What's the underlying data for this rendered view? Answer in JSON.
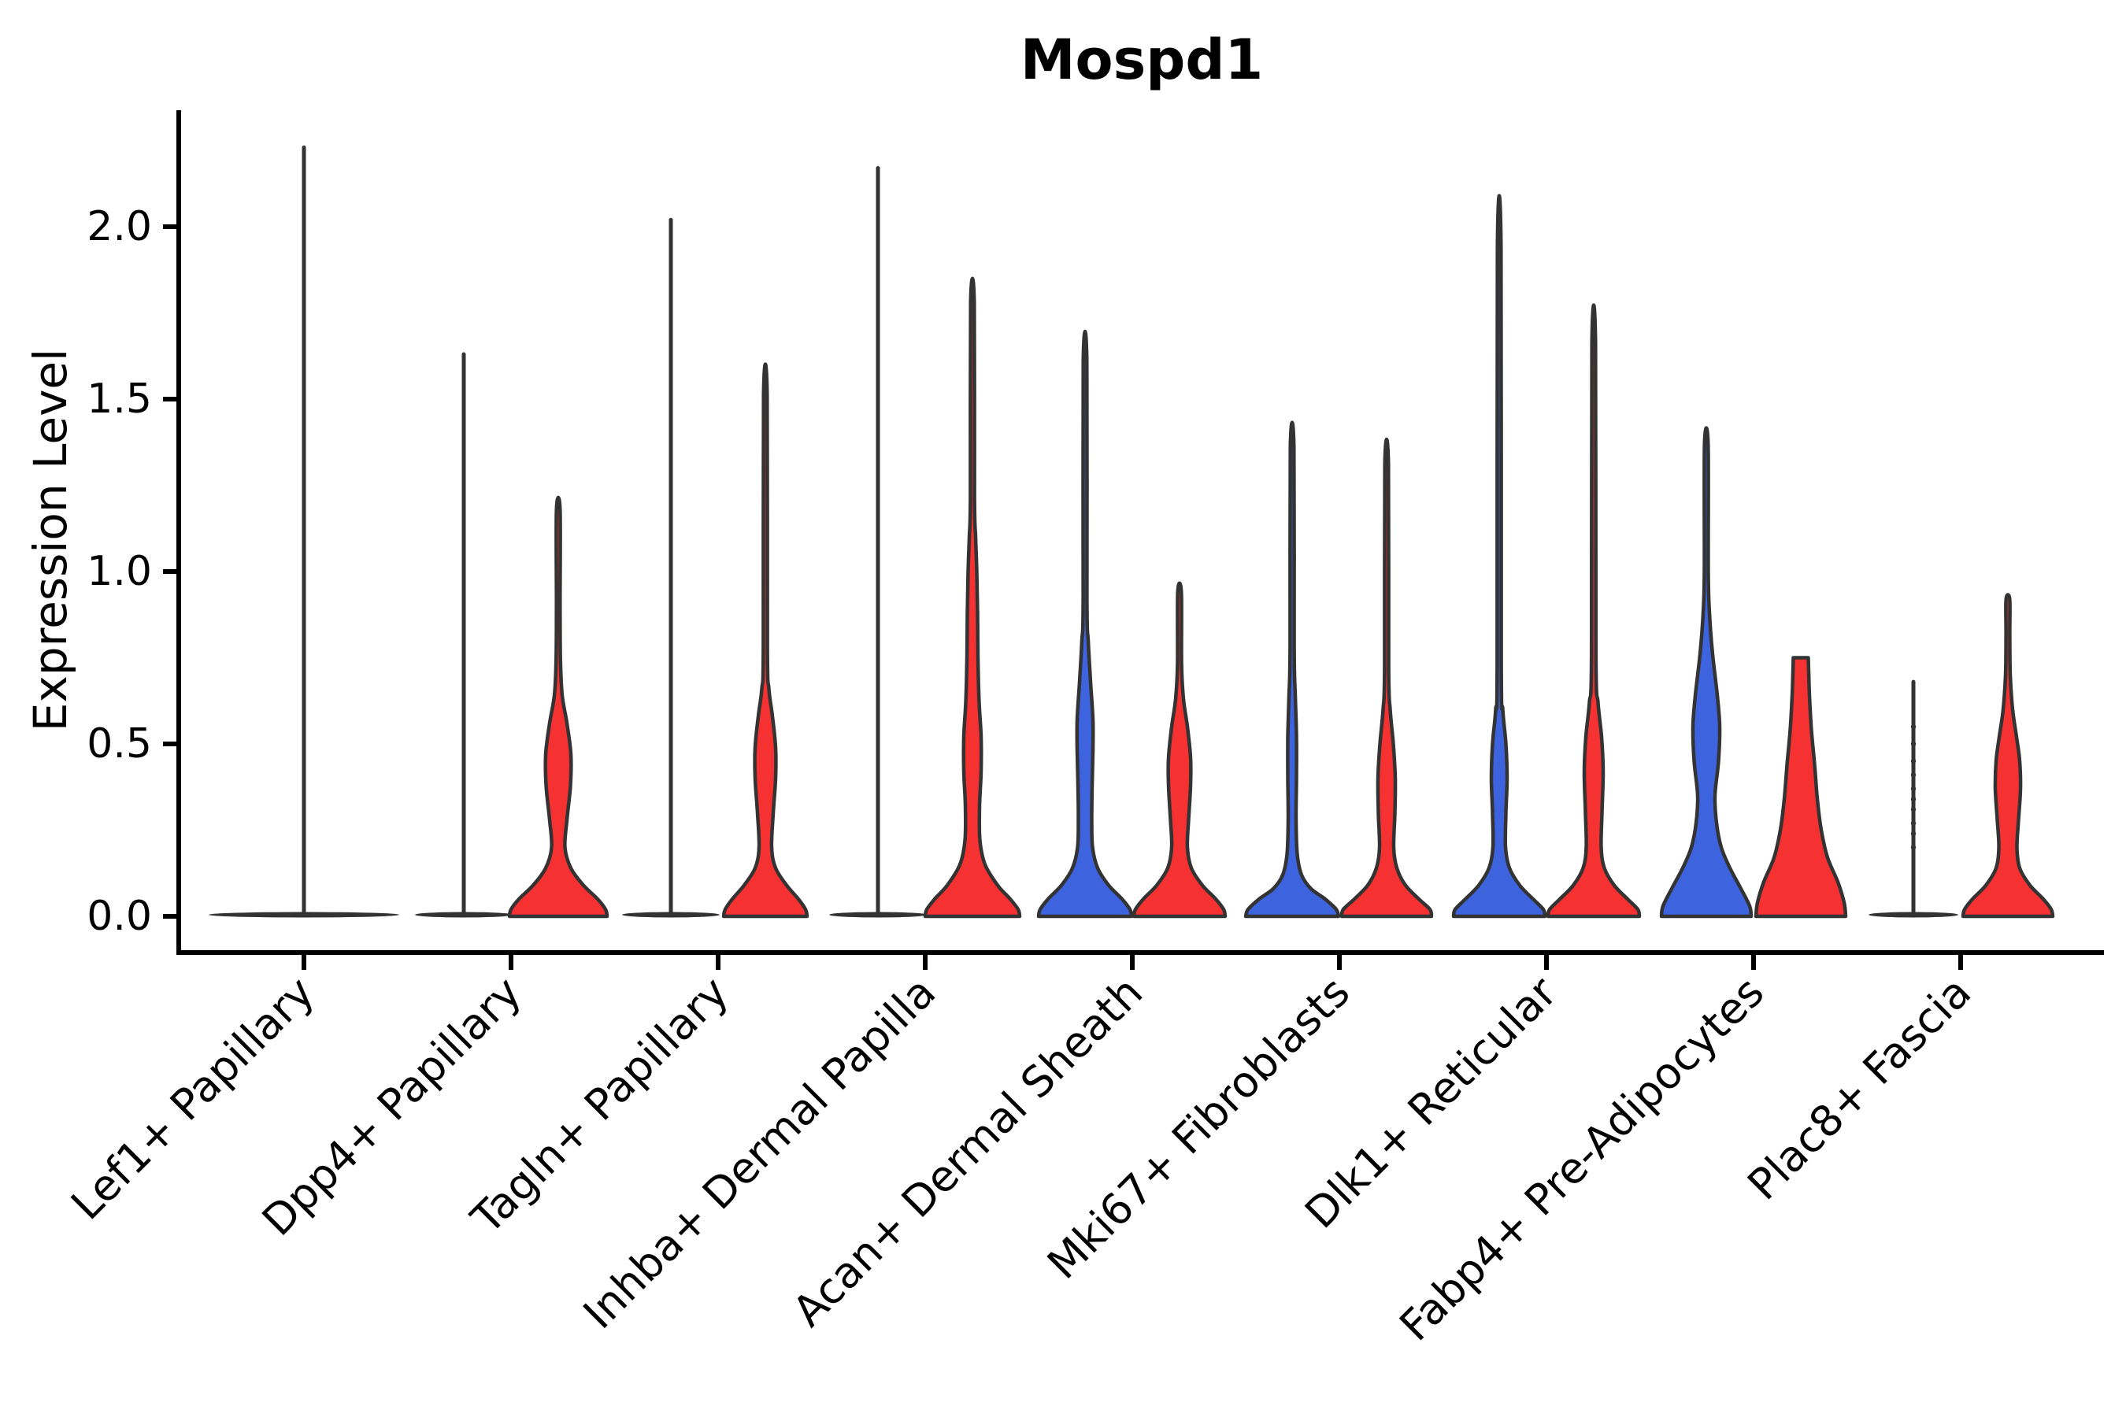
{
  "chart_data": {
    "type": "violin",
    "title": "Mospd1",
    "ylabel": "Expression Level",
    "xlabel": "",
    "ylim": [
      0,
      2.34
    ],
    "grid": false,
    "legend": "none",
    "yticks": [
      {
        "value": 0.0,
        "label": "0.0"
      },
      {
        "value": 0.5,
        "label": "0.5"
      },
      {
        "value": 1.0,
        "label": "1.0"
      },
      {
        "value": 1.5,
        "label": "1.5"
      },
      {
        "value": 2.0,
        "label": "2.0"
      }
    ],
    "categories": [
      "Lef1+ Papillary",
      "Dpp4+ Papillary",
      "Tagln+ Papillary",
      "Inhba+ Dermal Papilla",
      "Acan+ Dermal Sheath",
      "Mki67+ Fibroblasts",
      "Dlk1+ Reticular",
      "Fabp4+ Pre-Adipocytes",
      "Plac8+ Fascia"
    ],
    "colors": {
      "blue_fill": "#3E63DF",
      "red_fill": "#F53131",
      "outline": "#333333",
      "axis": "#000000"
    },
    "violins": [
      {
        "category_index": 0,
        "category": "Lef1+ Papillary",
        "side": "center",
        "color": "dark",
        "collapsed": true,
        "max": 2.23,
        "base_halfwidth": 121,
        "dots": []
      },
      {
        "category_index": 1,
        "category": "Dpp4+ Papillary",
        "side": "left",
        "color": "dark",
        "collapsed": true,
        "max": 1.63,
        "base_halfwidth": 62,
        "dots": []
      },
      {
        "category_index": 1,
        "category": "Dpp4+ Papillary",
        "side": "right",
        "color": "red",
        "collapsed": false,
        "max": 1.18,
        "flat_top": false,
        "profile": [
          [
            0,
            62
          ],
          [
            0.02,
            60
          ],
          [
            0.05,
            50
          ],
          [
            0.09,
            32
          ],
          [
            0.14,
            16
          ],
          [
            0.2,
            8.5
          ],
          [
            0.28,
            11
          ],
          [
            0.38,
            15.5
          ],
          [
            0.47,
            16
          ],
          [
            0.56,
            11
          ],
          [
            0.64,
            5
          ],
          [
            0.74,
            2.8
          ],
          [
            0.9,
            2.3
          ],
          [
            1.18,
            2.3
          ]
        ]
      },
      {
        "category_index": 2,
        "category": "Tagln+ Papillary",
        "side": "left",
        "color": "dark",
        "collapsed": true,
        "max": 2.02,
        "base_halfwidth": 62,
        "dots": []
      },
      {
        "category_index": 2,
        "category": "Tagln+ Papillary",
        "side": "right",
        "color": "red",
        "collapsed": false,
        "max": 1.51,
        "flat_top": false,
        "profile": [
          [
            0,
            53
          ],
          [
            0.02,
            51
          ],
          [
            0.05,
            42
          ],
          [
            0.09,
            27
          ],
          [
            0.14,
            13
          ],
          [
            0.2,
            8
          ],
          [
            0.3,
            10
          ],
          [
            0.4,
            13
          ],
          [
            0.49,
            13
          ],
          [
            0.58,
            9
          ],
          [
            0.66,
            4.5
          ],
          [
            0.78,
            2.6
          ],
          [
            1.51,
            2.3
          ]
        ]
      },
      {
        "category_index": 3,
        "category": "Inhba+ Dermal Papilla",
        "side": "left",
        "color": "dark",
        "collapsed": true,
        "max": 2.17,
        "base_halfwidth": 62,
        "dots": []
      },
      {
        "category_index": 3,
        "category": "Inhba+ Dermal Papilla",
        "side": "right",
        "color": "red",
        "collapsed": false,
        "max": 1.78,
        "flat_top": false,
        "profile": [
          [
            0,
            60
          ],
          [
            0.02,
            58
          ],
          [
            0.05,
            48
          ],
          [
            0.09,
            32
          ],
          [
            0.15,
            16
          ],
          [
            0.22,
            9.5
          ],
          [
            0.32,
            9
          ],
          [
            0.42,
            11
          ],
          [
            0.52,
            11
          ],
          [
            0.62,
            8.5
          ],
          [
            0.75,
            7
          ],
          [
            0.88,
            6.5
          ],
          [
            1.0,
            5.5
          ],
          [
            1.1,
            4
          ],
          [
            1.22,
            2.6
          ],
          [
            1.78,
            2.3
          ]
        ]
      },
      {
        "category_index": 4,
        "category": "Acan+ Dermal Sheath",
        "side": "left",
        "color": "blue",
        "collapsed": false,
        "max": 1.61,
        "flat_top": false,
        "profile": [
          [
            0,
            59
          ],
          [
            0.02,
            57
          ],
          [
            0.05,
            47
          ],
          [
            0.09,
            30
          ],
          [
            0.14,
            16
          ],
          [
            0.2,
            9.5
          ],
          [
            0.28,
            8.5
          ],
          [
            0.38,
            9
          ],
          [
            0.48,
            10
          ],
          [
            0.57,
            10
          ],
          [
            0.68,
            7
          ],
          [
            0.8,
            4
          ],
          [
            0.92,
            2.4
          ],
          [
            1.61,
            2.3
          ]
        ]
      },
      {
        "category_index": 4,
        "category": "Acan+ Dermal Sheath",
        "side": "right",
        "color": "red",
        "collapsed": false,
        "max": 0.94,
        "flat_top": false,
        "profile": [
          [
            0,
            58
          ],
          [
            0.02,
            56
          ],
          [
            0.05,
            46
          ],
          [
            0.09,
            29
          ],
          [
            0.14,
            15
          ],
          [
            0.2,
            10
          ],
          [
            0.28,
            11.5
          ],
          [
            0.38,
            14
          ],
          [
            0.46,
            14
          ],
          [
            0.55,
            10
          ],
          [
            0.63,
            5
          ],
          [
            0.73,
            2.6
          ],
          [
            0.94,
            2.3
          ]
        ]
      },
      {
        "category_index": 5,
        "category": "Mki67+ Fibroblasts",
        "side": "left",
        "color": "blue",
        "collapsed": false,
        "max": 1.36,
        "flat_top": false,
        "profile": [
          [
            0,
            59
          ],
          [
            0.02,
            56
          ],
          [
            0.05,
            42
          ],
          [
            0.08,
            24
          ],
          [
            0.12,
            12
          ],
          [
            0.18,
            6.5
          ],
          [
            0.28,
            5
          ],
          [
            0.4,
            5.5
          ],
          [
            0.52,
            5.5
          ],
          [
            0.64,
            4
          ],
          [
            0.78,
            2.6
          ],
          [
            1.36,
            2.3
          ]
        ]
      },
      {
        "category_index": 5,
        "category": "Mki67+ Fibroblasts",
        "side": "right",
        "color": "red",
        "collapsed": false,
        "max": 1.31,
        "flat_top": false,
        "profile": [
          [
            0,
            57
          ],
          [
            0.02,
            55
          ],
          [
            0.05,
            41
          ],
          [
            0.09,
            24
          ],
          [
            0.14,
            13
          ],
          [
            0.2,
            9
          ],
          [
            0.3,
            10.5
          ],
          [
            0.4,
            11
          ],
          [
            0.5,
            8.5
          ],
          [
            0.6,
            4.5
          ],
          [
            0.72,
            2.6
          ],
          [
            1.31,
            2.3
          ]
        ]
      },
      {
        "category_index": 6,
        "category": "Dlk1+ Reticular",
        "side": "left",
        "color": "blue",
        "collapsed": false,
        "max": 1.94,
        "flat_top": false,
        "profile": [
          [
            0,
            58
          ],
          [
            0.02,
            56
          ],
          [
            0.05,
            43
          ],
          [
            0.09,
            26
          ],
          [
            0.14,
            13
          ],
          [
            0.2,
            8
          ],
          [
            0.3,
            8.5
          ],
          [
            0.4,
            10
          ],
          [
            0.5,
            8.5
          ],
          [
            0.6,
            4.5
          ],
          [
            0.74,
            2.6
          ],
          [
            1.94,
            2.3
          ]
        ]
      },
      {
        "category_index": 6,
        "category": "Dlk1+ Reticular",
        "side": "right",
        "color": "red",
        "collapsed": false,
        "max": 1.66,
        "flat_top": false,
        "profile": [
          [
            0,
            58
          ],
          [
            0.02,
            56
          ],
          [
            0.05,
            43
          ],
          [
            0.09,
            26
          ],
          [
            0.14,
            13.5
          ],
          [
            0.2,
            9.5
          ],
          [
            0.3,
            10.5
          ],
          [
            0.42,
            12
          ],
          [
            0.52,
            10
          ],
          [
            0.62,
            5.5
          ],
          [
            0.76,
            2.8
          ],
          [
            1.66,
            2.3
          ]
        ]
      },
      {
        "category_index": 7,
        "category": "Fabp4+ Pre-Adipocytes",
        "side": "left",
        "color": "blue",
        "collapsed": false,
        "max": 1.37,
        "flat_top": false,
        "profile": [
          [
            0,
            57
          ],
          [
            0.03,
            55
          ],
          [
            0.08,
            44
          ],
          [
            0.14,
            30
          ],
          [
            0.2,
            19
          ],
          [
            0.27,
            13
          ],
          [
            0.35,
            11
          ],
          [
            0.45,
            15.5
          ],
          [
            0.55,
            17
          ],
          [
            0.64,
            14
          ],
          [
            0.76,
            8
          ],
          [
            0.88,
            4
          ],
          [
            1.0,
            2.5
          ],
          [
            1.37,
            2.3
          ]
        ]
      },
      {
        "category_index": 7,
        "category": "Fabp4+ Pre-Adipocytes",
        "side": "right",
        "color": "red",
        "collapsed": false,
        "max": 0.75,
        "flat_top": true,
        "profile": [
          [
            0,
            57
          ],
          [
            0.04,
            55
          ],
          [
            0.1,
            47
          ],
          [
            0.17,
            34
          ],
          [
            0.25,
            26
          ],
          [
            0.34,
            21
          ],
          [
            0.44,
            17.5
          ],
          [
            0.54,
            13.5
          ],
          [
            0.64,
            11
          ],
          [
            0.71,
            10
          ],
          [
            0.75,
            9.5
          ]
        ]
      },
      {
        "category_index": 8,
        "category": "Plac8+ Fascia",
        "side": "left",
        "color": "dark",
        "collapsed": true,
        "max": 0.68,
        "base_halfwidth": 57,
        "dots": [
          0.2,
          0.24,
          0.27,
          0.31,
          0.34,
          0.37,
          0.41,
          0.45,
          0.5,
          0.55
        ]
      },
      {
        "category_index": 8,
        "category": "Plac8+ Fascia",
        "side": "right",
        "color": "red",
        "collapsed": false,
        "max": 0.92,
        "flat_top": false,
        "profile": [
          [
            0,
            57
          ],
          [
            0.02,
            55
          ],
          [
            0.05,
            45
          ],
          [
            0.09,
            28
          ],
          [
            0.14,
            15
          ],
          [
            0.2,
            11.5
          ],
          [
            0.28,
            13.5
          ],
          [
            0.37,
            16
          ],
          [
            0.45,
            15
          ],
          [
            0.52,
            11
          ],
          [
            0.6,
            6
          ],
          [
            0.7,
            3
          ],
          [
            0.82,
            2.4
          ],
          [
            0.92,
            2.3
          ]
        ]
      }
    ]
  }
}
